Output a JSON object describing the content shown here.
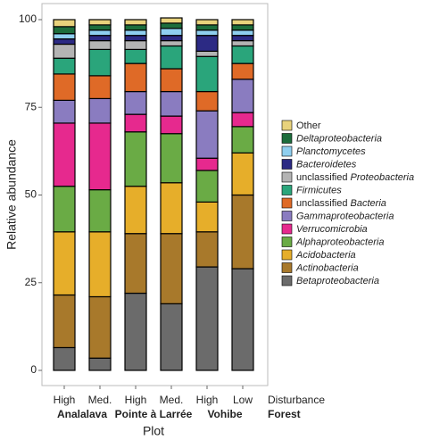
{
  "chart_data": {
    "type": "stacked_bar",
    "x_label": "Plot",
    "y_label": "Relative abundance",
    "categories": [
      "High",
      "Med.",
      "High",
      "Med.",
      "High",
      "Low"
    ],
    "groups": [
      "Analalava",
      "Pointe à Larrée",
      "Vohibe"
    ],
    "row_labels": [
      "Disturbance",
      "Forest"
    ],
    "ylim": [
      0,
      100
    ],
    "yticks": [
      0,
      25,
      50,
      75,
      100
    ],
    "series": [
      {
        "name": "Betaproteobacteria",
        "color": "#6b6b6b",
        "values": [
          6.5,
          3.5,
          22,
          19,
          29.5,
          29
        ]
      },
      {
        "name": "Actinobacteria",
        "color": "#a8792b",
        "values": [
          15,
          17.5,
          17,
          20,
          10,
          21
        ]
      },
      {
        "name": "Acidobacteria",
        "color": "#e6ae2a",
        "values": [
          18,
          18.5,
          13.5,
          14.5,
          8.5,
          12
        ]
      },
      {
        "name": "Alphaproteobacteria",
        "color": "#6aab45",
        "values": [
          13,
          12,
          15.5,
          14,
          9,
          7.5
        ]
      },
      {
        "name": "Verrucomicrobia",
        "color": "#e6298e",
        "values": [
          18,
          19,
          5,
          5,
          3.5,
          4
        ]
      },
      {
        "name": "Gammaproteobacteria",
        "color": "#8a7cc0",
        "values": [
          6.5,
          7,
          6.5,
          7,
          13.5,
          9.5
        ]
      },
      {
        "name": "unclassified Bacteria",
        "color": "#df6a27",
        "values": [
          7.5,
          6.5,
          8,
          6.5,
          5.5,
          4.5
        ]
      },
      {
        "name": "Firmicutes",
        "color": "#2aa57b",
        "values": [
          4.5,
          7.5,
          4,
          6.5,
          10,
          5
        ]
      },
      {
        "name": "unclassified Proteobacteria",
        "color": "#b4b4b4",
        "values": [
          4,
          2.5,
          2.5,
          1.5,
          1.5,
          1.5
        ]
      },
      {
        "name": "Bacteroidetes",
        "color": "#2c2a84",
        "values": [
          1.5,
          1.5,
          1.5,
          1.5,
          4.5,
          1.5
        ]
      },
      {
        "name": "Planctomycetes",
        "color": "#8fcff0",
        "values": [
          1.5,
          1.5,
          1.5,
          2,
          1.5,
          1.5
        ]
      },
      {
        "name": "Deltaproteobacteria",
        "color": "#1c6d3c",
        "values": [
          2,
          1.5,
          1.5,
          1.5,
          1.5,
          1.5
        ]
      },
      {
        "name": "Other",
        "color": "#e8d27c",
        "values": [
          2,
          1.5,
          1.5,
          1.5,
          1.5,
          1.5
        ]
      }
    ]
  }
}
